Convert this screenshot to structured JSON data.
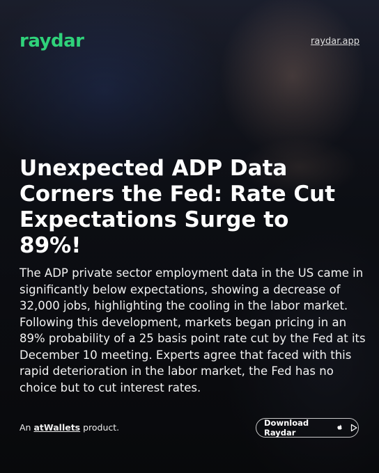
{
  "header": {
    "logo": "raydar",
    "link": "raydar.app"
  },
  "article": {
    "title": "Unexpected ADP Data Corners the Fed: Rate Cut Expectations Surge to 89%!",
    "body": "The ADP private sector employment data in the US came in significantly below expectations, showing a decrease of 32,000 jobs, highlighting the cooling in the labor market. Following this development, markets began pricing in an 89% probability of a 25 basis point rate cut by the Fed at its December 10 meeting. Experts agree that faced with this rapid deterioration in the labor market, the Fed has no choice but to cut interest rates."
  },
  "footer": {
    "prefix": "An",
    "brand": "atWallets",
    "suffix": "product.",
    "button": "Download Raydar"
  }
}
